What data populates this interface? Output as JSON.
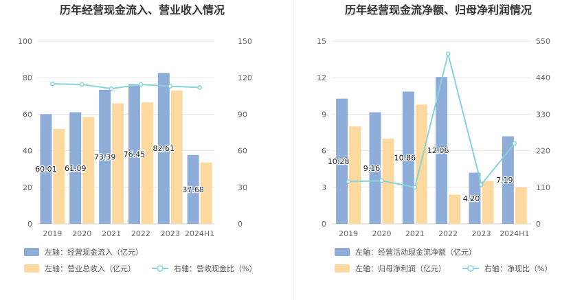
{
  "chart_data": [
    {
      "type": "bar",
      "title": "历年经营现金流入、营业收入情况",
      "categories": [
        "2019",
        "2020",
        "2021",
        "2022",
        "2023",
        "2024H1"
      ],
      "left_axis": {
        "ticks": [
          "0",
          "20",
          "40",
          "60",
          "80",
          "100"
        ],
        "range": [
          0,
          100
        ]
      },
      "right_axis": {
        "ticks": [
          "0",
          "30",
          "60",
          "90",
          "120",
          "150"
        ],
        "range": [
          0,
          150
        ]
      },
      "series": [
        {
          "name": "左轴：经营现金流入（亿元）",
          "kind": "bar",
          "axis": "left",
          "color": "#8eadd9",
          "values": [
            60.01,
            61.09,
            73.39,
            76.45,
            82.61,
            37.68
          ],
          "labels": [
            "60.01",
            "61.09",
            "73.39",
            "76.45",
            "82.61",
            "37.68"
          ]
        },
        {
          "name": "左轴：营业总收入（亿元）",
          "kind": "bar",
          "axis": "left",
          "color": "#fed99f",
          "values": [
            52,
            58.5,
            66,
            66.5,
            73,
            33.5
          ]
        },
        {
          "name": "右轴：营收现金比（%）",
          "kind": "line",
          "axis": "right",
          "color": "#87d3d8",
          "values": [
            115,
            114.5,
            111,
            114.5,
            113,
            112
          ]
        }
      ]
    },
    {
      "type": "bar",
      "title": "历年经营现金流净额、归母净利润情况",
      "categories": [
        "2019",
        "2020",
        "2021",
        "2022",
        "2023",
        "2024H1"
      ],
      "left_axis": {
        "ticks": [
          "0",
          "3",
          "6",
          "9",
          "12",
          "15"
        ],
        "range": [
          0,
          15
        ]
      },
      "right_axis": {
        "ticks": [
          "0",
          "110",
          "220",
          "330",
          "440",
          "550"
        ],
        "range": [
          0,
          550
        ]
      },
      "series": [
        {
          "name": "左轴：经营活动现金流净额（亿元）",
          "kind": "bar",
          "axis": "left",
          "color": "#8eadd9",
          "values": [
            10.28,
            9.16,
            10.86,
            12.06,
            4.2,
            7.19
          ],
          "labels": [
            "10.28",
            "9.16",
            "10.86",
            "12.06",
            "4.20",
            "7.19"
          ]
        },
        {
          "name": "左轴：归母净利润（亿元）",
          "kind": "bar",
          "axis": "left",
          "color": "#fed99f",
          "values": [
            8.0,
            7.0,
            9.8,
            2.4,
            3.5,
            3.0
          ]
        },
        {
          "name": "右轴：净现比（%）",
          "kind": "line",
          "axis": "right",
          "color": "#87d3d8",
          "values": [
            127,
            130,
            110,
            512,
            118,
            242
          ]
        }
      ]
    }
  ]
}
